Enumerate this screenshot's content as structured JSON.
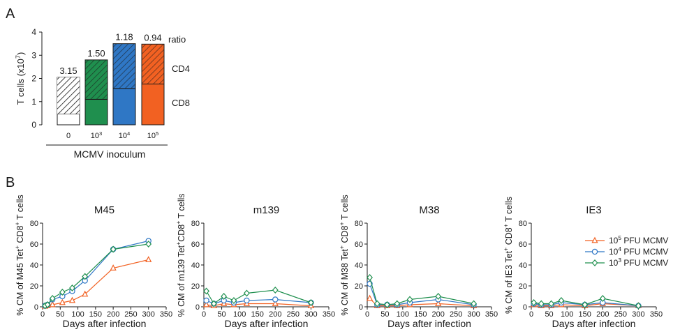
{
  "panels": {
    "a": "A",
    "b": "B"
  },
  "chart_data": [
    {
      "type": "bar",
      "stacked": true,
      "ylabel_main": "T cells (x10",
      "ylabel_sup": "7",
      "ylabel_end": ")",
      "ylim": [
        0,
        4
      ],
      "yticks": [
        "0",
        "1",
        "2",
        "3",
        "4"
      ],
      "categories": [
        {
          "base": "0",
          "sup": ""
        },
        {
          "base": "10",
          "sup": "3"
        },
        {
          "base": "10",
          "sup": "4"
        },
        {
          "base": "10",
          "sup": "5"
        }
      ],
      "xlabel": "MCMV inoculum",
      "cd8_values": [
        0.47,
        1.1,
        1.57,
        1.76
      ],
      "cd4_values": [
        1.58,
        1.7,
        1.93,
        1.72
      ],
      "ratio_labels": [
        "3.15",
        "1.50",
        "1.18",
        "0.94"
      ],
      "colors": [
        "#ffffff",
        "#1f8f4e",
        "#2f77c5",
        "#f26122"
      ],
      "annotations": {
        "ratio": "ratio",
        "cd4": "CD4",
        "cd8": "CD8"
      }
    },
    {
      "type": "line",
      "title": "M45",
      "ylabel_parts": [
        "% CM of M45 Tet",
        "+",
        " CD8",
        "+",
        " T cells"
      ],
      "xlabel": "Days after infection",
      "xlim": [
        0,
        350
      ],
      "ylim": [
        0,
        80
      ],
      "xticks": [
        "0",
        "50",
        "100",
        "150",
        "200",
        "250",
        "300",
        "350"
      ],
      "yticks": [
        "0",
        "20",
        "40",
        "60",
        "80"
      ],
      "x": [
        7,
        14,
        28,
        56,
        84,
        120,
        200,
        300
      ],
      "series": [
        {
          "values": [
            0.5,
            1,
            2,
            4,
            6,
            12,
            37,
            45
          ]
        },
        {
          "values": [
            1,
            2,
            7,
            10,
            15,
            25,
            55,
            63
          ]
        },
        {
          "values": [
            1,
            2,
            8,
            14,
            18,
            29,
            55,
            60
          ]
        }
      ]
    },
    {
      "type": "line",
      "title": "m139",
      "ylabel_parts": [
        "% CM of m139 Tet",
        "+",
        "CD8",
        "+",
        " T cells"
      ],
      "xlabel": "Days after infection",
      "xlim": [
        0,
        350
      ],
      "ylim": [
        0,
        80
      ],
      "xticks": [
        "0",
        "50",
        "100",
        "150",
        "200",
        "250",
        "300",
        "350"
      ],
      "yticks": [
        "0",
        "20",
        "40",
        "60",
        "80"
      ],
      "x": [
        7,
        28,
        56,
        84,
        120,
        200,
        300
      ],
      "series": [
        {
          "values": [
            2,
            1,
            3,
            2,
            3,
            3,
            1
          ]
        },
        {
          "values": [
            6,
            3,
            6,
            4,
            6,
            7,
            4
          ]
        },
        {
          "values": [
            15,
            3,
            10,
            6,
            13,
            16,
            4
          ]
        }
      ]
    },
    {
      "type": "line",
      "title": "M38",
      "ylabel_parts": [
        "% CM of M38 Tet",
        "+",
        " CD8",
        "+",
        " T cells"
      ],
      "xlabel": "Days after infection",
      "xlim": [
        0,
        350
      ],
      "ylim": [
        0,
        80
      ],
      "xticks": [
        "0",
        "50",
        "100",
        "150",
        "200",
        "250",
        "300",
        "350"
      ],
      "yticks": [
        "0",
        "20",
        "40",
        "60",
        "80"
      ],
      "x": [
        7,
        28,
        56,
        84,
        120,
        200,
        300
      ],
      "series": [
        {
          "values": [
            8,
            1,
            1,
            1,
            2,
            3,
            1
          ]
        },
        {
          "values": [
            22,
            2,
            2,
            2,
            4,
            7,
            2
          ]
        },
        {
          "values": [
            28,
            3,
            2,
            3,
            7,
            10,
            3
          ]
        }
      ]
    },
    {
      "type": "line",
      "title": "IE3",
      "ylabel_parts": [
        "% CM of IE3 Tet",
        "+",
        " CD8",
        "+",
        " T cells"
      ],
      "xlabel": "Days after infection",
      "xlim": [
        0,
        350
      ],
      "ylim": [
        0,
        80
      ],
      "xticks": [
        "0",
        "50",
        "100",
        "150",
        "200",
        "250",
        "300",
        "350"
      ],
      "yticks": [
        "0",
        "20",
        "40",
        "60",
        "80"
      ],
      "x": [
        7,
        28,
        56,
        84,
        150,
        200,
        300
      ],
      "series": [
        {
          "values": [
            2,
            1,
            1,
            2,
            1,
            3,
            1
          ]
        },
        {
          "values": [
            3,
            2,
            2,
            4,
            2,
            4,
            1
          ]
        },
        {
          "values": [
            4,
            3,
            3,
            6,
            2,
            8,
            1
          ]
        }
      ]
    }
  ],
  "legend": {
    "placement": "right",
    "items": [
      {
        "base": "10",
        "sup": "5",
        "rest": " PFU MCMV",
        "color": "#f26122",
        "marker": "triangle"
      },
      {
        "base": "10",
        "sup": "4",
        "rest": " PFU MCMV",
        "color": "#2f77c5",
        "marker": "circle"
      },
      {
        "base": "10",
        "sup": "3",
        "rest": " PFU MCMV",
        "color": "#1f8f4e",
        "marker": "diamond"
      }
    ]
  }
}
